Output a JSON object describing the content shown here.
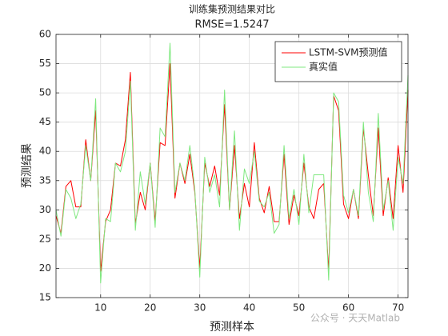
{
  "chart_data": {
    "type": "line",
    "title": "训练集预测结果对比",
    "subtitle": "RMSE=1.5247",
    "x_label": "预测样本",
    "y_label": "预测结果",
    "watermark": "公众号 · 天天Matlab",
    "x": [
      1,
      2,
      3,
      4,
      5,
      6,
      7,
      8,
      9,
      10,
      11,
      12,
      13,
      14,
      15,
      16,
      17,
      18,
      19,
      20,
      21,
      22,
      23,
      24,
      25,
      26,
      27,
      28,
      29,
      30,
      31,
      32,
      33,
      34,
      35,
      36,
      37,
      38,
      39,
      40,
      41,
      42,
      43,
      44,
      45,
      46,
      47,
      48,
      49,
      50,
      51,
      52,
      53,
      54,
      55,
      56,
      57,
      58,
      59,
      60,
      61,
      62,
      63,
      64,
      65,
      66,
      67,
      68,
      69,
      70,
      71,
      72
    ],
    "series": [
      {
        "name": "LSTM-SVM预测值",
        "color": "#ff0000",
        "values": [
          29,
          26,
          34,
          35,
          30.5,
          30.5,
          42,
          35,
          47,
          19.5,
          28,
          30,
          38,
          37.5,
          42,
          53.5,
          27.5,
          33,
          30,
          38,
          28,
          41.5,
          41,
          55,
          32,
          38,
          34.5,
          39.5,
          33,
          20,
          38,
          34,
          37.5,
          32.5,
          48,
          30,
          41,
          28.5,
          34.5,
          30.5,
          41.5,
          32,
          29.5,
          34,
          28,
          28,
          39.5,
          27.5,
          32.5,
          29,
          38,
          30.5,
          28.5,
          33.5,
          34.5,
          19.5,
          49.5,
          47,
          31,
          28.5,
          33.5,
          28.5,
          44,
          36,
          29,
          44,
          29,
          35.5,
          28.5,
          41,
          33,
          50.5
        ]
      },
      {
        "name": "真实值",
        "color": "#7fe87f",
        "values": [
          30,
          25.5,
          33.5,
          32,
          28.5,
          31,
          41,
          35,
          49,
          17.5,
          28.5,
          28,
          38,
          36.5,
          40,
          52,
          26.5,
          36.5,
          31,
          38,
          27,
          44,
          42.5,
          58.5,
          33,
          38,
          35,
          41,
          33.5,
          18.5,
          39,
          33,
          36,
          30.5,
          50.5,
          30,
          43.5,
          26.5,
          37,
          34.5,
          40,
          31.5,
          30.5,
          33,
          26,
          27.5,
          41,
          28.5,
          33.5,
          27.5,
          39.5,
          29.5,
          36,
          36,
          36,
          18,
          50,
          48.5,
          32.5,
          29.5,
          33.5,
          29,
          45,
          33,
          28,
          46.5,
          30,
          35,
          26.5,
          39,
          34.5,
          53
        ]
      }
    ],
    "xlim": [
      1,
      72
    ],
    "xticks": [
      10,
      20,
      30,
      40,
      50,
      60,
      70
    ],
    "ylim": [
      15,
      60
    ],
    "yticks": [
      15,
      20,
      25,
      30,
      35,
      40,
      45,
      50,
      55,
      60
    ],
    "grid": true,
    "legend": "upper right"
  }
}
